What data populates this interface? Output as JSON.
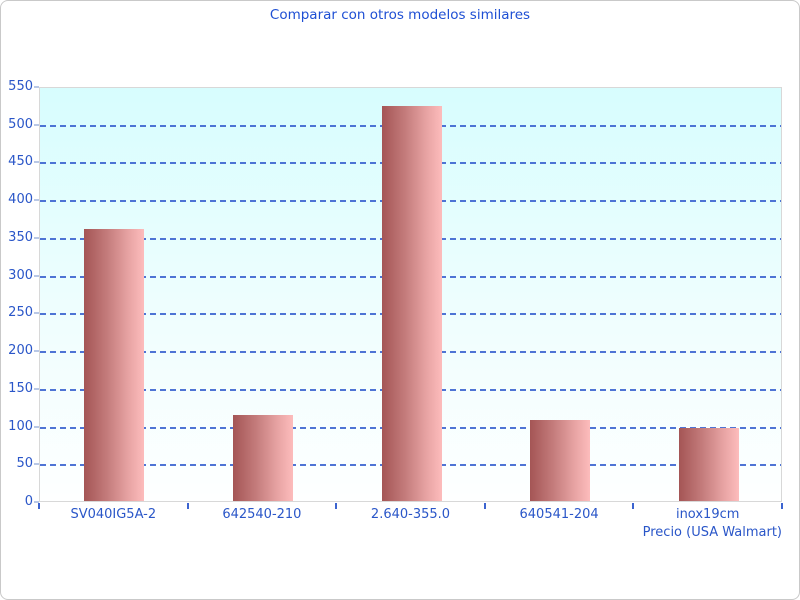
{
  "title": "Comparar con otros modelos similares",
  "chart_data": {
    "type": "bar",
    "title": "Comparar con otros modelos similares",
    "categories": [
      "SV040IG5A-2",
      "642540-210",
      "2.640-355.0",
      "640541-204",
      "inox19cm"
    ],
    "values": [
      361,
      114,
      523,
      108,
      97
    ],
    "xlabel": "Precio (USA Walmart)",
    "ylabel": "",
    "ylim": [
      0,
      550
    ],
    "ytick_step": 50,
    "grid": "dashed horizontal",
    "legend": "none",
    "colors": {
      "title_text": "#1e4fd4",
      "axis_text": "#2a56c8",
      "gridline": "#3c64d0",
      "plot_bg_top": "#d7fdfe",
      "plot_bg_bottom": "#feffff",
      "plot_border": "#d8d8d8",
      "bar_gradient_left": "#a45555",
      "bar_gradient_right": "#fdbcbc",
      "frame_border": "#c9c9c9"
    }
  }
}
